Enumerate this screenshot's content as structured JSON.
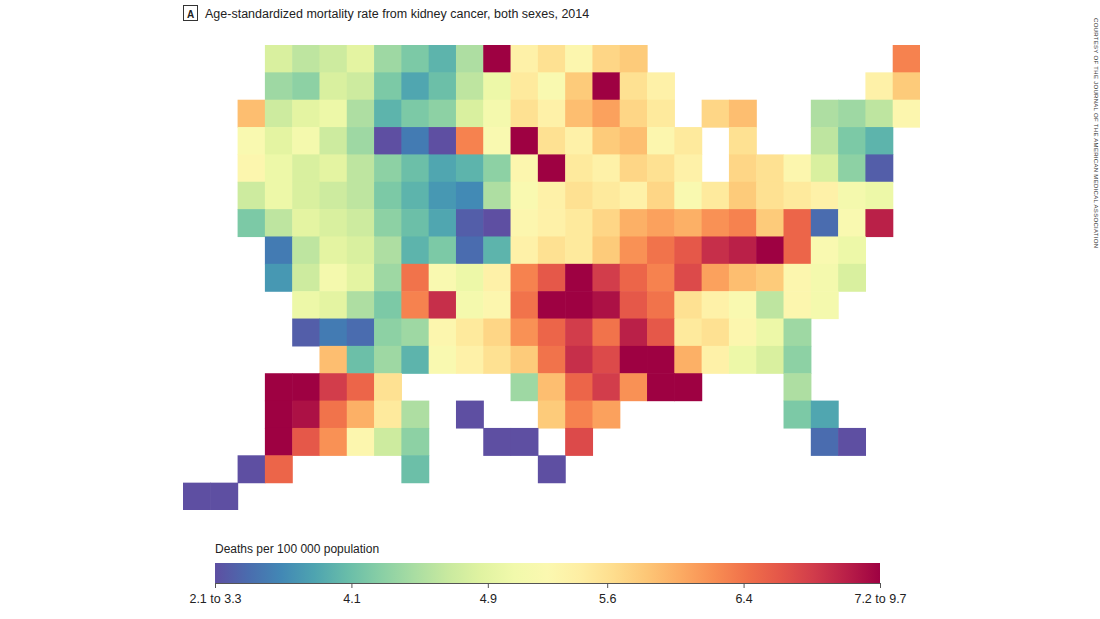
{
  "chart_data": {
    "type": "choropleth",
    "panel_label": "A",
    "title": "Age-standardized mortality rate from kidney cancer, both sexes, 2014",
    "credit": "COURTESY OF THE JOURNAL OF THE AMERICAN MEDICAL ASSOCIATION",
    "cells": [
      [
        null,
        null,
        null,
        4.8,
        4.6,
        4.7,
        4.9,
        4.4,
        4.2,
        4.0,
        4.5,
        7.6,
        5.4,
        5.6,
        5.3,
        5.7,
        5.8,
        null,
        null,
        null,
        null,
        null,
        null,
        null,
        null,
        null,
        6.3
      ],
      [
        null,
        null,
        null,
        4.4,
        4.3,
        4.8,
        4.7,
        4.2,
        3.9,
        4.1,
        4.6,
        5.0,
        5.5,
        5.2,
        5.8,
        7.3,
        5.6,
        5.4,
        null,
        null,
        null,
        null,
        null,
        null,
        null,
        5.4,
        5.8
      ],
      [
        null,
        null,
        5.9,
        4.7,
        4.9,
        5.0,
        4.5,
        4.0,
        4.2,
        4.3,
        4.8,
        5.1,
        5.6,
        5.4,
        5.9,
        6.1,
        5.7,
        5.5,
        null,
        5.7,
        5.9,
        null,
        null,
        4.5,
        4.4,
        4.6,
        5.3
      ],
      [
        null,
        null,
        5.2,
        4.9,
        5.1,
        4.7,
        4.4,
        3.3,
        3.6,
        3.2,
        6.3,
        5.2,
        7.8,
        5.6,
        5.4,
        5.8,
        5.9,
        5.3,
        5.5,
        null,
        5.6,
        null,
        null,
        4.6,
        4.2,
        4.0,
        null
      ],
      [
        null,
        null,
        5.3,
        5.0,
        4.8,
        4.9,
        4.6,
        4.3,
        4.1,
        3.9,
        4.0,
        4.3,
        5.3,
        7.9,
        5.5,
        5.4,
        5.7,
        5.6,
        5.4,
        null,
        5.7,
        5.6,
        5.3,
        4.8,
        4.3,
        3.4,
        null
      ],
      [
        null,
        null,
        4.7,
        5.0,
        4.8,
        4.7,
        4.6,
        4.2,
        4.0,
        3.8,
        3.7,
        4.5,
        5.2,
        5.4,
        5.6,
        5.5,
        5.4,
        5.7,
        5.2,
        5.5,
        5.8,
        5.6,
        5.5,
        5.4,
        5.1,
        5.0,
        null
      ],
      [
        null,
        null,
        4.2,
        4.6,
        4.9,
        4.8,
        4.7,
        4.3,
        4.1,
        3.9,
        3.4,
        3.2,
        5.3,
        5.4,
        5.5,
        5.7,
        6.0,
        6.1,
        6.0,
        6.2,
        6.3,
        5.8,
        6.5,
        3.5,
        5.2,
        7.0,
        null
      ],
      [
        null,
        null,
        null,
        3.6,
        4.6,
        4.9,
        4.8,
        4.5,
        4.0,
        4.2,
        3.5,
        4.0,
        5.4,
        5.6,
        5.5,
        5.8,
        6.2,
        6.4,
        6.6,
        6.9,
        7.0,
        7.2,
        6.5,
        5.2,
        5.0,
        null,
        null
      ],
      [
        null,
        null,
        null,
        3.8,
        4.7,
        5.1,
        4.9,
        4.4,
        6.4,
        5.2,
        5.0,
        5.4,
        6.3,
        6.6,
        7.2,
        6.8,
        6.5,
        6.3,
        6.7,
        6.1,
        5.9,
        5.8,
        5.3,
        5.1,
        4.8,
        null,
        null
      ],
      [
        null,
        null,
        null,
        null,
        5.0,
        4.9,
        4.5,
        4.2,
        6.3,
        6.9,
        5.1,
        5.3,
        6.4,
        7.5,
        7.8,
        7.1,
        6.6,
        6.4,
        5.6,
        5.4,
        5.2,
        4.6,
        5.3,
        5.1,
        null,
        null,
        null
      ],
      [
        null,
        null,
        null,
        null,
        3.4,
        3.6,
        3.5,
        4.3,
        4.4,
        5.3,
        5.5,
        5.7,
        6.2,
        6.5,
        6.8,
        6.4,
        7.0,
        6.6,
        5.5,
        5.6,
        5.3,
        5.0,
        4.4,
        null,
        null,
        null,
        null
      ],
      [
        null,
        null,
        null,
        null,
        null,
        5.9,
        4.1,
        4.4,
        4.0,
        5.2,
        5.4,
        5.6,
        5.8,
        6.4,
        6.9,
        6.7,
        7.4,
        7.6,
        6.0,
        5.4,
        5.0,
        4.8,
        4.3,
        null,
        null,
        null,
        null
      ],
      [
        null,
        null,
        null,
        7.8,
        7.5,
        6.8,
        6.5,
        5.6,
        null,
        null,
        null,
        null,
        4.4,
        5.9,
        6.5,
        6.8,
        6.2,
        7.9,
        7.5,
        null,
        null,
        null,
        4.5,
        null,
        null,
        null,
        null
      ],
      [
        null,
        null,
        null,
        7.9,
        7.1,
        6.4,
        6.0,
        5.5,
        4.5,
        null,
        3.1,
        null,
        null,
        5.8,
        6.3,
        6.1,
        null,
        null,
        null,
        null,
        null,
        null,
        4.2,
        3.9,
        null,
        null,
        null
      ],
      [
        null,
        null,
        null,
        7.7,
        6.6,
        6.2,
        5.3,
        4.7,
        4.3,
        null,
        null,
        3.0,
        3.1,
        null,
        6.7,
        null,
        null,
        null,
        null,
        null,
        null,
        null,
        null,
        3.5,
        3.2,
        null,
        null
      ],
      [
        null,
        null,
        3.1,
        6.5,
        null,
        null,
        null,
        null,
        4.1,
        null,
        null,
        null,
        null,
        3.0,
        null,
        null,
        null,
        null,
        null,
        null,
        null,
        null,
        null,
        null,
        null,
        null,
        null
      ],
      [
        3.0,
        3.1,
        null,
        null,
        null,
        null,
        null,
        null,
        null,
        null,
        null,
        null,
        null,
        null,
        null,
        null,
        null,
        null,
        null,
        null,
        null,
        null,
        null,
        null,
        null,
        null,
        null
      ]
    ],
    "colorbar": {
      "label": "Deaths per 100 000 population",
      "range": [
        3.3,
        7.2
      ],
      "ticks": [
        {
          "value": 3.3,
          "label": "2.1 to 3.3"
        },
        4.1,
        4.9,
        5.6,
        6.4,
        {
          "value": 7.2,
          "label": "7.2 to 9.7"
        }
      ]
    }
  }
}
